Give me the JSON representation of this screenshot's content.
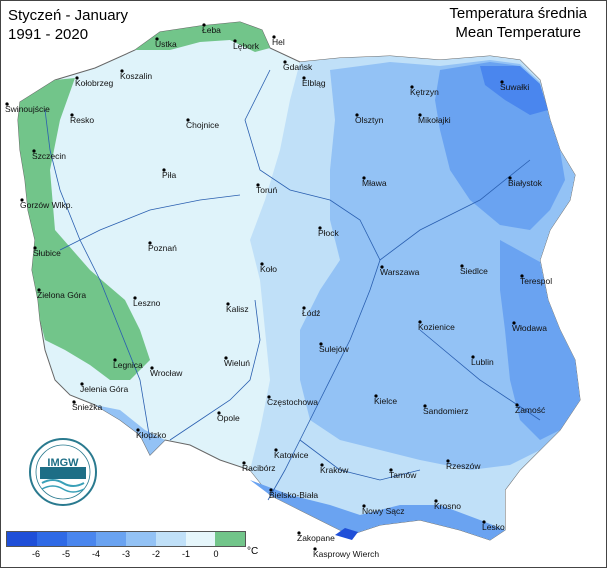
{
  "title": {
    "line1": "Styczeń - January",
    "line2": "1991 - 2020"
  },
  "subtitle": {
    "line1": "Temperatura średnia",
    "line2": "Mean Temperature"
  },
  "legend": {
    "unit": "°C",
    "ticks": [
      "-6",
      "-5",
      "-4",
      "-3",
      "-2",
      "-1",
      "0"
    ],
    "colors": [
      "#1f4fd8",
      "#2f6ae6",
      "#4a86ee",
      "#6aa3f1",
      "#93c2f5",
      "#c0e0f8",
      "#e6f6fb",
      "#72c58a"
    ]
  },
  "logo": {
    "text": "IMGW"
  },
  "cities": [
    "Łeba",
    "Hel",
    "Ustka",
    "Lębork",
    "Gdańsk",
    "Koszalin",
    "Kołobrzeg",
    "Elbląg",
    "Świnoujście",
    "Resko",
    "Kętrzyn",
    "Suwałki",
    "Olsztyn",
    "Mikołajki",
    "Chojnice",
    "Szczecin",
    "Piła",
    "Mława",
    "Białystok",
    "Toruń",
    "Gorzów Wlkp.",
    "Płock",
    "Poznań",
    "Słubice",
    "Koło",
    "Siedlce",
    "Warszawa",
    "Terespol",
    "Zielona Góra",
    "Leszno",
    "Kalisz",
    "Łódź",
    "Kozienice",
    "Włodawa",
    "Sulejów",
    "Legnica",
    "Lublin",
    "Wieluń",
    "Wrocław",
    "Jelenia Góra",
    "Częstochowa",
    "Kielce",
    "Śnieżka",
    "Sandomierz",
    "Zamość",
    "Opole",
    "Kłodzko",
    "Katowice",
    "Rzeszów",
    "Racibórz",
    "Kraków",
    "Tarnów",
    "Bielsko-Biała",
    "Krosno",
    "Nowy Sącz",
    "Lesko",
    "Zakopane",
    "Kasprowy Wierch"
  ]
}
